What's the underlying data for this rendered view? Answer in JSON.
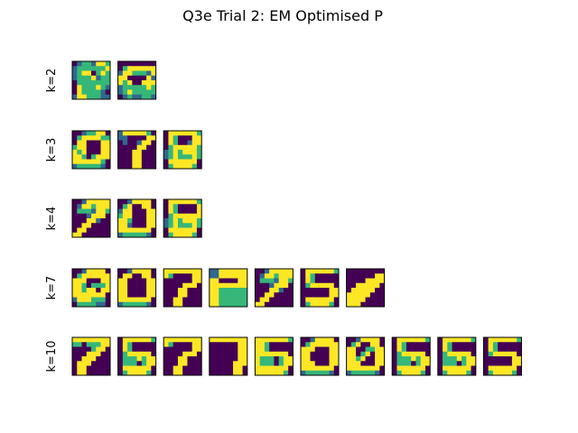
{
  "chart_data": {
    "type": "heatmap",
    "title": "Q3e Trial 2: EM Optimised P",
    "colormap": "viridis",
    "grid_size": 8,
    "rows": [
      {
        "label": "k=2",
        "images": [
          [
            "01221332",
            "12222223",
            "12334232",
            "12223122",
            "02222222",
            "03222321",
            "03222210",
            "13322211"
          ],
          [
            "00000000",
            "02333333",
            "13322213",
            "33000031",
            "32300333",
            "12222232",
            "12322222",
            "01211221"
          ]
        ]
      },
      {
        "label": "k=3",
        "images": [
          [
            "00122330",
            "02333322",
            "03300033",
            "23300033",
            "32300033",
            "33202333",
            "33333320",
            "12222210"
          ],
          [
            "13333320",
            "11000033",
            "01001330",
            "00003300",
            "00033000",
            "00033000",
            "00033000",
            "00033000"
          ],
          [
            "03333332",
            "03200033",
            "03200133",
            "02333332",
            "12323332",
            "12322232",
            "03333330",
            "02333320"
          ]
        ]
      },
      {
        "label": "k=4",
        "images": [
          [
            "00133333",
            "01332333",
            "02221332",
            "00013330",
            "00033100",
            "00330000",
            "03300000",
            "33000000"
          ],
          [
            "00133330",
            "02300330",
            "13300033",
            "23300033",
            "33200033",
            "33100033",
            "33333330",
            "12222210"
          ],
          [
            "03333332",
            "03200003",
            "03200003",
            "02333333",
            "12323332",
            "12322232",
            "03333330",
            "02333320"
          ]
        ]
      },
      {
        "label": "k=7",
        "images": [
          [
            "00133330",
            "02333333",
            "33300033",
            "33202223",
            "33233033",
            "33333330",
            "13332220",
            "02222110"
          ],
          [
            "00133330",
            "03300330",
            "33000033",
            "33000033",
            "33000033",
            "33000033",
            "33333330",
            "12222210"
          ],
          [
            "33333333",
            "32000033",
            "00000033",
            "00003330",
            "00033000",
            "00033000",
            "00330000",
            "00330000"
          ],
          [
            "11333333",
            "11333333",
            "33000033",
            "33333333",
            "33222222",
            "33222222",
            "33222222",
            "33222222"
          ],
          [
            "00133333",
            "01332333",
            "02221332",
            "00013330",
            "00033100",
            "00330000",
            "03300000",
            "33000000"
          ],
          [
            "03333332",
            "03200000",
            "03200000",
            "02333330",
            "00000033",
            "00000033",
            "03333330",
            "02333320"
          ],
          [
            "00000000",
            "00000033",
            "00003333",
            "00333330",
            "03333300",
            "33333000",
            "33330000",
            "33300000"
          ]
        ]
      },
      {
        "label": "k=10",
        "images": [
          [
            "33333333",
            "22022233",
            "00002330",
            "00033300",
            "00333000",
            "03330000",
            "03300000",
            "03300000"
          ],
          [
            "03333332",
            "03200000",
            "03200000",
            "02333330",
            "02223233",
            "02220233",
            "03333330",
            "02333320"
          ],
          [
            "33333333",
            "32000033",
            "00000033",
            "00003330",
            "00033000",
            "00033000",
            "00330000",
            "00330000"
          ],
          [
            "33333333",
            "00000033",
            "00000033",
            "00000033",
            "00000033",
            "00000333",
            "00000330",
            "00000330"
          ],
          [
            "33333332",
            "33200000",
            "33200000",
            "33333330",
            "32220233",
            "32220233",
            "33333330",
            "33333320"
          ],
          [
            "00133330",
            "02333333",
            "33300033",
            "33000033",
            "33000033",
            "33300033",
            "33333330",
            "12222210"
          ],
          [
            "00133330",
            "02300330",
            "33002233",
            "33023033",
            "33230033",
            "33300033",
            "33333330",
            "12222210"
          ],
          [
            "03333332",
            "03200000",
            "03200000",
            "02333330",
            "02223233",
            "02220233",
            "03333330",
            "02333320"
          ],
          [
            "03333332",
            "03200000",
            "03200000",
            "02333330",
            "02223233",
            "02220233",
            "03333330",
            "02333320"
          ],
          [
            "03333332",
            "03200000",
            "03200000",
            "02333330",
            "00000033",
            "00000033",
            "03333330",
            "02333320"
          ]
        ]
      }
    ]
  }
}
